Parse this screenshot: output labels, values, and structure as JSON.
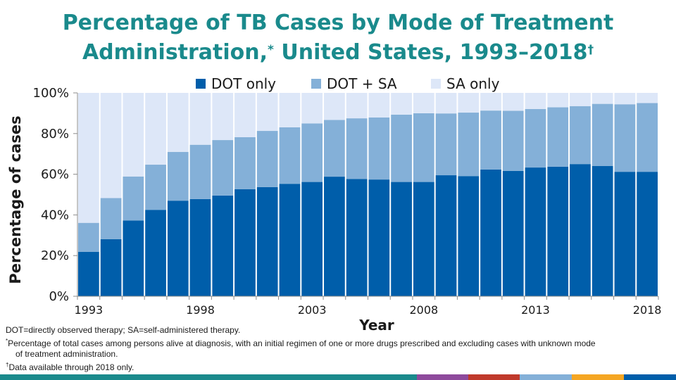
{
  "title": {
    "line1": "Percentage of TB Cases by Mode of Treatment",
    "line2_main": "Administration,",
    "line2_sup": "*",
    "line2_rest": " United States, 1993–2018",
    "line2_sup2": "†"
  },
  "chart_data": {
    "type": "bar",
    "stacked": true,
    "title": "Percentage of TB Cases by Mode of Treatment Administration, United States, 1993–2018",
    "xlabel": "Year",
    "ylabel": "Percentage of cases",
    "ylim": [
      0,
      100
    ],
    "yticks": [
      0,
      20,
      40,
      60,
      80,
      100
    ],
    "ytick_labels": [
      "0%",
      "20%",
      "40%",
      "60%",
      "80%",
      "100%"
    ],
    "xtick_years": [
      1993,
      1998,
      2003,
      2008,
      2013,
      2018
    ],
    "xtick_labels": [
      "1993",
      "1998",
      "2003",
      "2008",
      "2013",
      "2018"
    ],
    "categories": [
      1993,
      1994,
      1995,
      1996,
      1997,
      1998,
      1999,
      2000,
      2001,
      2002,
      2003,
      2004,
      2005,
      2006,
      2007,
      2008,
      2009,
      2010,
      2011,
      2012,
      2013,
      2014,
      2015,
      2016,
      2017,
      2018
    ],
    "legend_position": "top",
    "series": [
      {
        "name": "DOT only",
        "color": "#005eaa",
        "values": [
          21.8,
          28.1,
          37.2,
          42.5,
          47.0,
          47.8,
          49.5,
          52.6,
          53.7,
          55.3,
          56.2,
          58.8,
          57.7,
          57.4,
          56.2,
          56.2,
          59.5,
          59.1,
          62.3,
          61.6,
          63.3,
          63.7,
          65.0,
          64.1,
          61.2,
          61.2
        ]
      },
      {
        "name": "DOT + SA",
        "color": "#84b0d8",
        "values": [
          14.3,
          20.2,
          21.7,
          22.2,
          24.0,
          26.7,
          27.3,
          25.6,
          27.6,
          27.8,
          28.8,
          27.9,
          29.8,
          30.5,
          33.1,
          33.8,
          30.4,
          31.2,
          29.0,
          29.6,
          28.8,
          29.2,
          28.5,
          30.5,
          33.2,
          33.8
        ]
      },
      {
        "name": "SA only",
        "color": "#dde7f8",
        "values": [
          63.9,
          51.7,
          41.1,
          35.3,
          29.0,
          25.5,
          23.2,
          21.8,
          18.7,
          16.9,
          15.0,
          13.3,
          12.5,
          12.1,
          10.7,
          10.0,
          10.1,
          9.7,
          8.7,
          8.8,
          7.9,
          7.1,
          6.5,
          5.4,
          5.6,
          5.0
        ]
      }
    ]
  },
  "notes": {
    "abbrev": "DOT=directly observed therapy; SA=self-administered therapy.",
    "star_mark": "*",
    "star_text": "Percentage of total cases among persons alive at diagnosis, with an initial regimen of one or more drugs prescribed and excluding cases with unknown mode",
    "star_text2": "of treatment administration.",
    "dagger_mark": "†",
    "dagger_text": "Data available through 2018 only."
  },
  "footer_colors": [
    "#1a8a8c",
    "#8e4a9c",
    "#c0392b",
    "#84b0d8",
    "#f5a623",
    "#005eaa"
  ]
}
